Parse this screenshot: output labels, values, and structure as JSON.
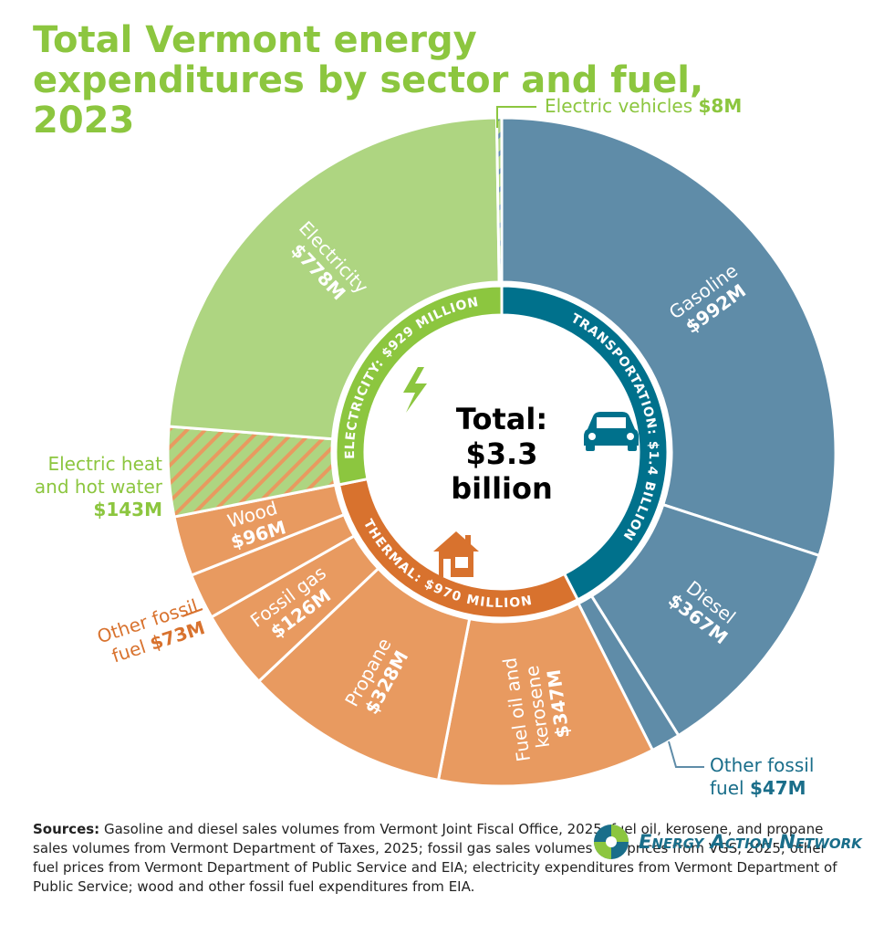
{
  "chart_data": {
    "type": "sunburst",
    "title": "Total Vermont energy expenditures by sector and fuel, 2023",
    "center_label": [
      "Total:",
      "$3.3",
      "billion"
    ],
    "sectors": [
      {
        "name": "TRANSPORTATION:",
        "value": 1400,
        "value_label": "$1.4 BILLION",
        "color": "#00718c",
        "children": [
          {
            "name": "Gasoline",
            "value": 992,
            "value_label": "$992M",
            "color": "#5f8ca8"
          },
          {
            "name": "Diesel",
            "value": 367,
            "value_label": "$367M",
            "color": "#5f8ca8"
          },
          {
            "name": "Other fossil fuel",
            "value": 47,
            "value_label": "$47M",
            "color": "#5f8ca8"
          }
        ]
      },
      {
        "name": "THERMAL:",
        "value": 970,
        "value_label": "$970 MILLION",
        "color": "#d8722e",
        "children": [
          {
            "name": "Fuel oil and kerosene",
            "value": 347,
            "value_label": "$347M",
            "color": "#e89a60"
          },
          {
            "name": "Propane",
            "value": 328,
            "value_label": "$328M",
            "color": "#e89a60"
          },
          {
            "name": "Fossil gas",
            "value": 126,
            "value_label": "$126M",
            "color": "#e89a60"
          },
          {
            "name": "Other fossil fuel",
            "value": 73,
            "value_label": "$73M",
            "color": "#e89a60"
          },
          {
            "name": "Wood",
            "value": 96,
            "value_label": "$96M",
            "color": "#e89a60"
          }
        ]
      },
      {
        "name": "ELECTRICITY:",
        "value": 929,
        "value_label": "$929 MILLION",
        "color": "#8cc63f",
        "children": [
          {
            "name": "Electric heat and hot water",
            "value": 143,
            "value_label": "$143M",
            "color": "#aed581",
            "pattern": "hatch",
            "hatch_color": "#e89a60"
          },
          {
            "name": "Electricity",
            "value": 778,
            "value_label": "$778M",
            "color": "#aed581"
          },
          {
            "name": "Electric vehicles",
            "value": 8,
            "value_label": "$8M",
            "color": "#aed581",
            "pattern": "hatch",
            "hatch_color": "#5f8ca8"
          }
        ]
      }
    ]
  },
  "sources": {
    "label": "Sources:",
    "text": "Gasoline and diesel sales volumes from Vermont Joint Fiscal Office, 2025; fuel oil, kerosene, and propane sales volumes from Vermont Department of Taxes, 2025; fossil gas sales volumes and prices from VGS, 2025; other fuel prices from Vermont Department of Public Service and EIA; electricity expenditures from Vermont Department of Public Service; wood and other fossil fuel expenditures from EIA."
  },
  "logo": "Energy Action Network"
}
